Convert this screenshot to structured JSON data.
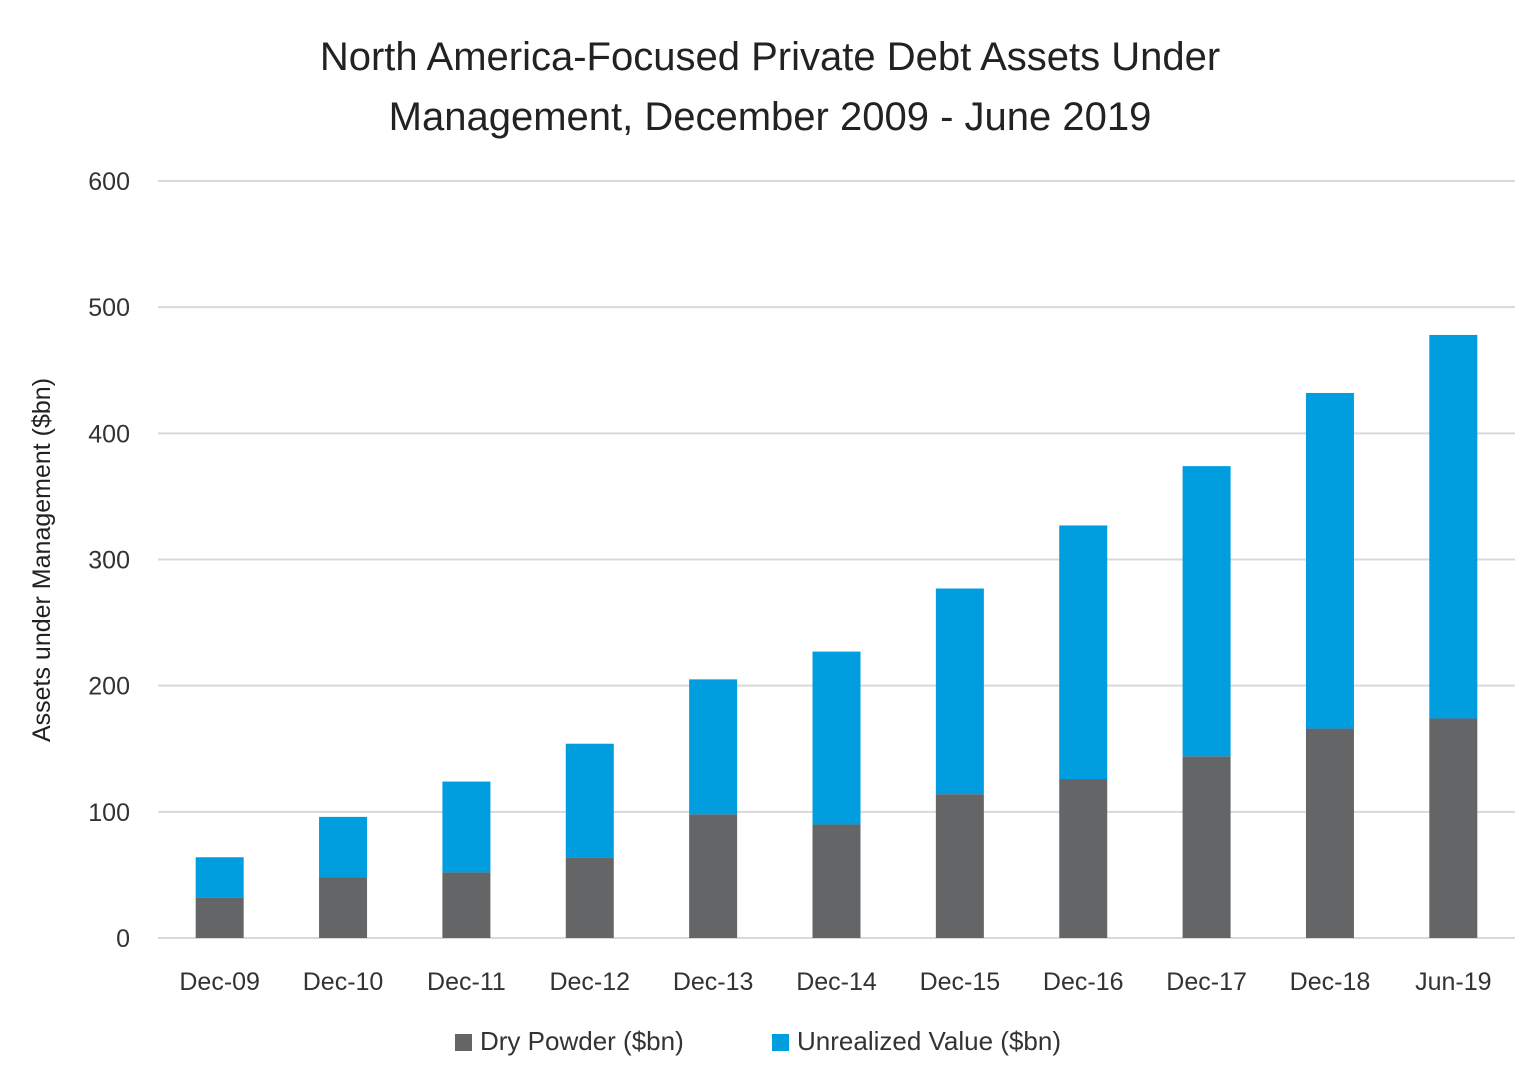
{
  "chart_data": {
    "type": "bar",
    "stacked": true,
    "title_lines": [
      "North America-Focused Private Debt Assets Under",
      "Management, December 2009 - June 2019"
    ],
    "ylabel": "Assets under Management ($bn)",
    "xlabel": "",
    "ylim": [
      0,
      600
    ],
    "yticks": [
      0,
      100,
      200,
      300,
      400,
      500,
      600
    ],
    "grid": "horizontal",
    "legend_position": "bottom",
    "categories": [
      "Dec-09",
      "Dec-10",
      "Dec-11",
      "Dec-12",
      "Dec-13",
      "Dec-14",
      "Dec-15",
      "Dec-16",
      "Dec-17",
      "Dec-18",
      "Jun-19"
    ],
    "series": [
      {
        "name": "Dry Powder ($bn)",
        "color": "#646567",
        "values": [
          32,
          48,
          52,
          64,
          98,
          90,
          114,
          126,
          144,
          166,
          174
        ]
      },
      {
        "name": "Unrealized Value ($bn)",
        "color": "#009ddf",
        "values": [
          32,
          48,
          72,
          90,
          107,
          137,
          163,
          201,
          230,
          266,
          304
        ]
      }
    ]
  }
}
